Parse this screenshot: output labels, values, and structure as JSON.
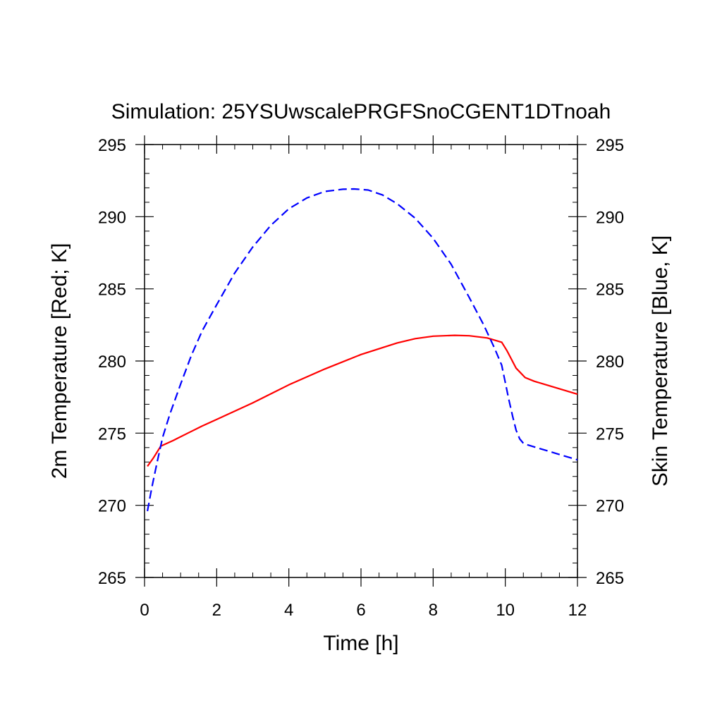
{
  "chart_data": {
    "type": "line",
    "title": "Simulation: 25YSUwscalePRGFSnoCGENT1DTnoah",
    "xlabel": "Time [h]",
    "ylabel_left": "2m Temperature [Red; K]",
    "ylabel_right": "Skin Temperature [Blue, K]",
    "xlim": [
      0,
      12
    ],
    "ylim": [
      265,
      295
    ],
    "x_ticks": [
      0,
      2,
      4,
      6,
      8,
      10,
      12
    ],
    "y_ticks": [
      265,
      270,
      275,
      280,
      285,
      290,
      295
    ],
    "x_minor_step": 0.5,
    "y_minor_step": 1,
    "grid": false,
    "series": [
      {
        "color": "#ff0000",
        "dash": "solid",
        "x": [
          0.08,
          0.25,
          0.45,
          0.8,
          1.2,
          1.6,
          2.0,
          3.0,
          4.0,
          5.0,
          6.0,
          7.0,
          7.5,
          8.0,
          8.6,
          9.0,
          9.5,
          9.9,
          10.05,
          10.3,
          10.55,
          10.8,
          11.2,
          11.6,
          12.0
        ],
        "values": [
          272.7,
          273.3,
          274.1,
          274.5,
          275.0,
          275.5,
          275.95,
          277.1,
          278.35,
          279.45,
          280.45,
          281.25,
          281.55,
          281.72,
          281.78,
          281.75,
          281.6,
          281.3,
          280.7,
          279.5,
          278.85,
          278.6,
          278.3,
          278.0,
          277.7
        ]
      },
      {
        "color": "#0000ff",
        "dash": "dashed",
        "x": [
          0.08,
          0.2,
          0.35,
          0.5,
          0.7,
          1.0,
          1.3,
          1.6,
          2.0,
          2.5,
          3.0,
          3.5,
          4.0,
          4.5,
          5.0,
          5.5,
          5.8,
          6.2,
          6.6,
          7.0,
          7.5,
          8.0,
          8.5,
          9.0,
          9.4,
          9.7,
          9.9,
          10.0,
          10.1,
          10.2,
          10.3,
          10.4,
          10.5,
          10.6,
          10.8,
          11.2,
          11.6,
          12.0
        ],
        "values": [
          269.6,
          271.2,
          273.0,
          274.7,
          276.3,
          278.4,
          280.4,
          282.1,
          283.9,
          286.1,
          287.9,
          289.4,
          290.55,
          291.3,
          291.75,
          291.9,
          291.92,
          291.85,
          291.5,
          290.9,
          289.9,
          288.5,
          286.7,
          284.4,
          282.5,
          280.9,
          279.7,
          278.5,
          277.3,
          276.2,
          275.2,
          274.6,
          274.3,
          274.2,
          274.05,
          273.75,
          273.45,
          273.15
        ]
      }
    ]
  }
}
